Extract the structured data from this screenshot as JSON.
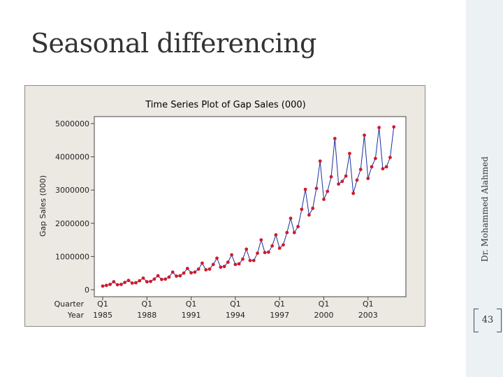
{
  "slide": {
    "title": "Seasonal differencing",
    "author": "Dr. Mohammed Alahmed",
    "page_number": "43"
  },
  "colors": {
    "chart_background": "#ece9e3",
    "line": "#1a2ea0",
    "marker": "#d11a2a",
    "side_bar": "#ecf1f4"
  },
  "chart_data": {
    "type": "line",
    "title": "Time Series Plot of Gap Sales (000)",
    "ylabel": "Gap Sales (000)",
    "x_row_labels": [
      "Quarter",
      "Year"
    ],
    "ylim": [
      0,
      5000000
    ],
    "yticks": [
      "0",
      "1000000",
      "2000000",
      "3000000",
      "4000000",
      "5000000"
    ],
    "ytick_values": [
      0,
      1000000,
      2000000,
      3000000,
      4000000,
      5000000
    ],
    "xticks": [
      {
        "index": 0,
        "quarter": "Q1",
        "year": "1985"
      },
      {
        "index": 12,
        "quarter": "Q1",
        "year": "1988"
      },
      {
        "index": 24,
        "quarter": "Q1",
        "year": "1991"
      },
      {
        "index": 36,
        "quarter": "Q1",
        "year": "1994"
      },
      {
        "index": 48,
        "quarter": "Q1",
        "year": "1997"
      },
      {
        "index": 60,
        "quarter": "Q1",
        "year": "2000"
      },
      {
        "index": 72,
        "quarter": "Q1",
        "year": "2003"
      }
    ],
    "xlim": [
      0,
      80
    ],
    "grid": false,
    "markers": true,
    "series": [
      {
        "values": [
          110000,
          130000,
          160000,
          240000,
          150000,
          160000,
          220000,
          280000,
          200000,
          210000,
          270000,
          350000,
          240000,
          250000,
          320000,
          420000,
          310000,
          320000,
          380000,
          530000,
          410000,
          420000,
          500000,
          640000,
          510000,
          530000,
          620000,
          800000,
          600000,
          620000,
          760000,
          950000,
          680000,
          700000,
          830000,
          1050000,
          760000,
          780000,
          920000,
          1220000,
          880000,
          880000,
          1100000,
          1500000,
          1120000,
          1130000,
          1320000,
          1650000,
          1250000,
          1350000,
          1720000,
          2150000,
          1720000,
          1900000,
          2420000,
          3020000,
          2250000,
          2450000,
          3050000,
          3870000,
          2720000,
          2960000,
          3400000,
          4550000,
          3180000,
          3260000,
          3420000,
          4100000,
          2900000,
          3300000,
          3620000,
          4650000,
          3350000,
          3700000,
          3950000,
          4880000,
          3640000,
          3700000,
          3980000,
          4900000
        ]
      }
    ]
  }
}
